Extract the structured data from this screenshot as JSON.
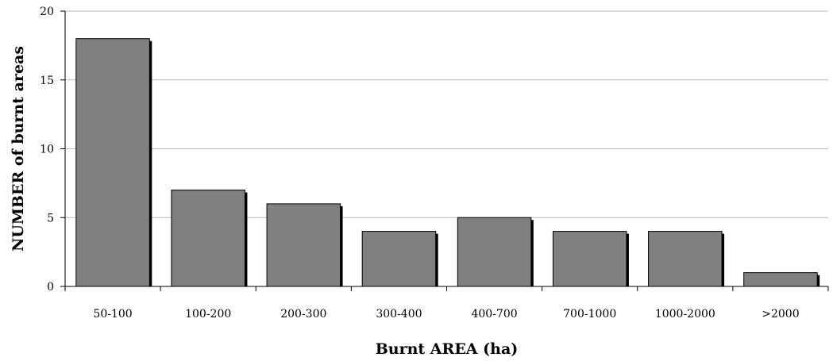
{
  "chart_data": {
    "type": "bar",
    "title": "",
    "xlabel": "Burnt AREA (ha)",
    "ylabel": "NUMBER of burnt areas",
    "categories": [
      "50-100",
      "100-200",
      "200-300",
      "300-400",
      "400-700",
      "700-1000",
      "1000-2000",
      ">2000"
    ],
    "values": [
      18,
      7,
      6,
      4,
      5,
      4,
      4,
      1
    ],
    "ylim": [
      0,
      20
    ],
    "yticks": [
      "0",
      "5",
      "10",
      "15",
      "20"
    ],
    "grid": true,
    "legend": "none",
    "colors": {
      "bar": "#808080",
      "shadow": "#000000",
      "grid": "#bcbcbc",
      "axis": "#000000"
    }
  }
}
